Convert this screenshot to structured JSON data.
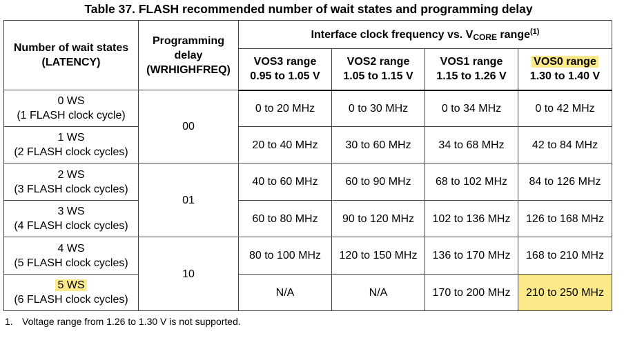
{
  "title": "Table 37. FLASH recommended number of wait states and programming delay",
  "header": {
    "latency": [
      "Number of wait states",
      "(LATENCY)"
    ],
    "delay": [
      "Programming",
      "delay",
      "(WRHIGHFREQ)"
    ],
    "interface": {
      "text": "Interface clock frequency vs. V",
      "sub": "CORE",
      "after": " range",
      "sup": "(1)"
    },
    "ranges": [
      {
        "name": "VOS3 range",
        "voltage": "0.95 to 1.05 V"
      },
      {
        "name": "VOS2 range",
        "voltage": "1.05 to 1.15 V"
      },
      {
        "name": "VOS1 range",
        "voltage": "1.15 to 1.26 V"
      },
      {
        "name": "VOS0 range",
        "voltage": "1.30 to 1.40 V"
      }
    ]
  },
  "rows": [
    {
      "ws": "0 WS",
      "cycles": "(1 FLASH clock cycle)",
      "freq": [
        "0 to 20 MHz",
        "0 to 30 MHz",
        "0 to 34 MHz",
        "0 to 42 MHz"
      ]
    },
    {
      "ws": "1 WS",
      "cycles": "(2 FLASH clock cycles)",
      "freq": [
        "20 to 40 MHz",
        "30 to 60 MHz",
        "34 to 68 MHz",
        "42 to 84 MHz"
      ]
    },
    {
      "ws": "2 WS",
      "cycles": "(3 FLASH clock cycles)",
      "freq": [
        "40 to 60 MHz",
        "60 to 90 MHz",
        "68 to 102 MHz",
        "84 to 126 MHz"
      ]
    },
    {
      "ws": "3 WS",
      "cycles": "(4 FLASH clock cycles)",
      "freq": [
        "60 to 80 MHz",
        "90 to 120 MHz",
        "102 to 136 MHz",
        "126 to 168 MHz"
      ]
    },
    {
      "ws": "4 WS",
      "cycles": "(5 FLASH clock cycles)",
      "freq": [
        "80 to 100 MHz",
        "120 to 150 MHz",
        "136 to 170 MHz",
        "168 to 210 MHz"
      ]
    },
    {
      "ws": "5 WS",
      "cycles": "(6 FLASH clock cycles)",
      "freq": [
        "N/A",
        "N/A",
        "170 to 200 MHz",
        "210 to 250 MHz"
      ]
    }
  ],
  "delays": [
    "00",
    "01",
    "10"
  ],
  "footnote": {
    "number": "1.",
    "text": "Voltage range from 1.26 to 1.30 V is not supported."
  }
}
